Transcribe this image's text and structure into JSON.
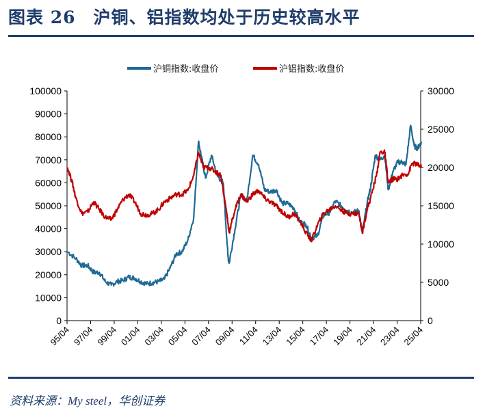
{
  "title": "图表 26　沪铜、铝指数均处于历史较高水平",
  "source": "资料来源：My steel，华创证券",
  "chart_data": {
    "type": "line",
    "title": "",
    "legend_position": "top",
    "grid": false,
    "x_tick_labels": [
      "95/04",
      "97/04",
      "99/04",
      "01/04",
      "03/04",
      "05/04",
      "07/04",
      "09/04",
      "11/04",
      "13/04",
      "15/04",
      "17/04",
      "19/04",
      "21/04",
      "23/04",
      "25/04"
    ],
    "x_range": [
      1995.25,
      2025.25
    ],
    "y_left": {
      "range": [
        0,
        100000
      ],
      "ticks": [
        0,
        10000,
        20000,
        30000,
        40000,
        50000,
        60000,
        70000,
        80000,
        90000,
        100000
      ]
    },
    "y_right": {
      "range": [
        0,
        30000
      ],
      "ticks": [
        0,
        5000,
        10000,
        15000,
        20000,
        25000,
        30000
      ]
    },
    "series": [
      {
        "name": "沪铜指数:收盘价",
        "axis": "left",
        "color": "#1f6b94",
        "x": [
          1995.3,
          1996,
          1996.5,
          1997,
          1997.5,
          1998,
          1998.5,
          1999,
          1999.5,
          2000,
          2000.5,
          2001,
          2001.5,
          2002,
          2002.5,
          2003,
          2003.5,
          2004,
          2004.5,
          2005,
          2005.5,
          2006,
          2006.4,
          2006.7,
          2007,
          2007.5,
          2008,
          2008.5,
          2008.9,
          2009.0,
          2009.5,
          2010,
          2010.5,
          2011,
          2011.5,
          2012,
          2012.5,
          2013,
          2013.5,
          2014,
          2014.5,
          2015,
          2015.5,
          2016,
          2016.5,
          2017,
          2017.5,
          2018,
          2018.5,
          2019,
          2019.5,
          2020,
          2020.3,
          2020.7,
          2021,
          2021.4,
          2021.8,
          2022.2,
          2022.5,
          2022.9,
          2023.3,
          2023.7,
          2024.0,
          2024.4,
          2024.7,
          2025.0,
          2025.3
        ],
        "y": [
          30000,
          27000,
          24000,
          24000,
          21000,
          21000,
          17000,
          15500,
          17000,
          17500,
          19000,
          18500,
          17000,
          16000,
          16500,
          17000,
          18000,
          23000,
          29000,
          30000,
          35000,
          45000,
          78000,
          70000,
          62000,
          72000,
          63000,
          60000,
          28000,
          25000,
          40000,
          55000,
          52000,
          72000,
          68000,
          57000,
          56000,
          57000,
          51000,
          51000,
          49000,
          43000,
          42000,
          36000,
          37000,
          46000,
          47000,
          52000,
          50000,
          48000,
          47000,
          48000,
          38000,
          51000,
          58000,
          72000,
          70000,
          72000,
          57000,
          65000,
          69000,
          69000,
          68000,
          85000,
          76000,
          75000,
          78000
        ]
      },
      {
        "name": "沪铝指数:收盘价",
        "axis": "right",
        "color": "#c00000",
        "x": [
          1995.3,
          1995.7,
          1996,
          1996.5,
          1997,
          1997.5,
          1998,
          1998.5,
          1999,
          1999.5,
          2000,
          2000.5,
          2001,
          2001.5,
          2002,
          2002.5,
          2003,
          2003.5,
          2004,
          2004.5,
          2005,
          2005.5,
          2006,
          2006.4,
          2006.8,
          2007.3,
          2007.8,
          2008.3,
          2008.8,
          2009.0,
          2009.5,
          2010,
          2010.5,
          2011,
          2011.5,
          2012,
          2012.5,
          2013,
          2013.5,
          2014,
          2014.5,
          2015,
          2015.7,
          2016,
          2016.5,
          2017,
          2017.5,
          2018,
          2018.5,
          2019,
          2019.5,
          2020,
          2020.3,
          2020.7,
          2021,
          2021.5,
          2021.8,
          2022.2,
          2022.5,
          2022.9,
          2023.3,
          2023.7,
          2024.2,
          2024.5,
          2024.9,
          2025.3
        ],
        "y": [
          20000,
          18000,
          16000,
          14000,
          14200,
          15500,
          14500,
          13500,
          13200,
          14500,
          15800,
          16500,
          15500,
          14000,
          13800,
          14000,
          14500,
          15500,
          16000,
          16500,
          16500,
          17000,
          19000,
          22000,
          20000,
          20000,
          19500,
          19000,
          14000,
          11500,
          14500,
          16500,
          15500,
          16500,
          17000,
          16000,
          15500,
          15000,
          14200,
          13500,
          14000,
          13000,
          11000,
          10500,
          12500,
          14000,
          14500,
          15000,
          14500,
          14000,
          14000,
          14000,
          11500,
          14500,
          16000,
          19000,
          22000,
          22000,
          18000,
          18500,
          18500,
          19000,
          19200,
          20500,
          20500,
          20000
        ]
      }
    ]
  }
}
